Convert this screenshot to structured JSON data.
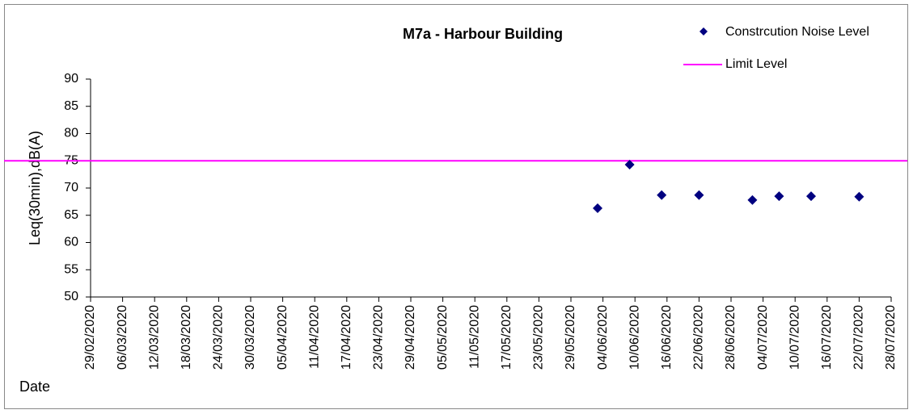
{
  "chart_data": {
    "type": "scatter",
    "title": "M7a - Harbour Building",
    "y_label": "Leq(30min),dB(A)",
    "x_label": "Date",
    "series": [
      {
        "name": "Constrcution Noise Level",
        "color": "#000080",
        "x": [
          "03/06/2020",
          "09/06/2020",
          "15/06/2020",
          "22/06/2020",
          "02/07/2020",
          "07/07/2020",
          "13/07/2020",
          "22/07/2020"
        ],
        "values": [
          66.3,
          74.3,
          68.7,
          68.7,
          67.8,
          68.5,
          68.5,
          68.4
        ]
      }
    ],
    "limit": {
      "name": "Limit Level",
      "value": 75,
      "color": "#ff00ff"
    },
    "xlim": [
      "29/02/2020",
      "28/07/2020"
    ],
    "xticks": [
      "29/02/2020",
      "06/03/2020",
      "12/03/2020",
      "18/03/2020",
      "24/03/2020",
      "30/03/2020",
      "05/04/2020",
      "11/04/2020",
      "17/04/2020",
      "23/04/2020",
      "29/04/2020",
      "05/05/2020",
      "11/05/2020",
      "17/05/2020",
      "23/05/2020",
      "29/05/2020",
      "04/06/2020",
      "10/06/2020",
      "16/06/2020",
      "22/06/2020",
      "28/06/2020",
      "04/07/2020",
      "10/07/2020",
      "16/07/2020",
      "22/07/2020",
      "28/07/2020"
    ],
    "ylim": [
      50,
      90
    ],
    "yticks": [
      50,
      55,
      60,
      65,
      70,
      75,
      80,
      85,
      90
    ]
  }
}
